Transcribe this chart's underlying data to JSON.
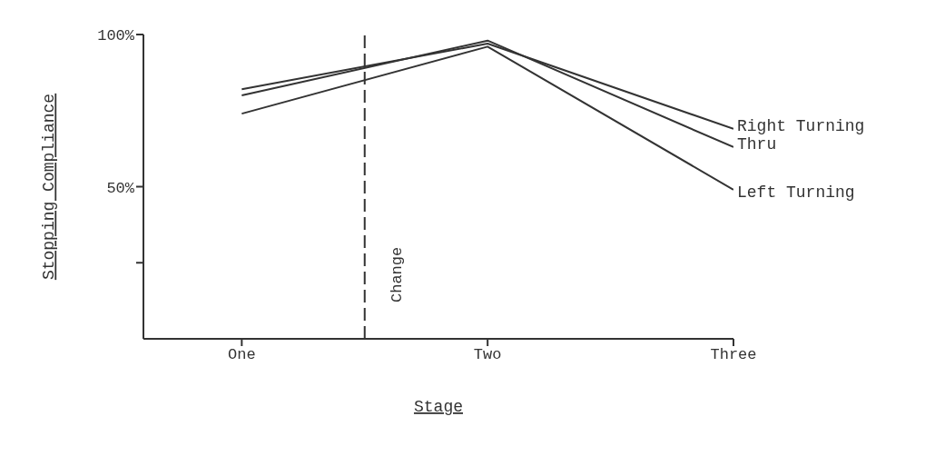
{
  "chart_data": {
    "type": "line",
    "xlabel": "Stage",
    "ylabel": "Stopping Compliance",
    "categories": [
      "One",
      "Two",
      "Three"
    ],
    "ylim": [
      0,
      100
    ],
    "yticks": [
      {
        "value": 25,
        "label": null
      },
      {
        "value": 50,
        "label": "50%"
      },
      {
        "value": 100,
        "label": "100%"
      }
    ],
    "series": [
      {
        "name": "Right Turning",
        "color": "#333333",
        "values": [
          82,
          97,
          69
        ]
      },
      {
        "name": "Thru",
        "color": "#333333",
        "values": [
          80,
          98,
          63
        ]
      },
      {
        "name": "Left Turning",
        "color": "#333333",
        "values": [
          74,
          96,
          49
        ]
      }
    ],
    "ref_lines": [
      {
        "axis": "x",
        "label": "Change",
        "line_style": "dashed",
        "color": "#333333"
      }
    ],
    "grid": false,
    "marker": "none",
    "line_style": "solid"
  }
}
